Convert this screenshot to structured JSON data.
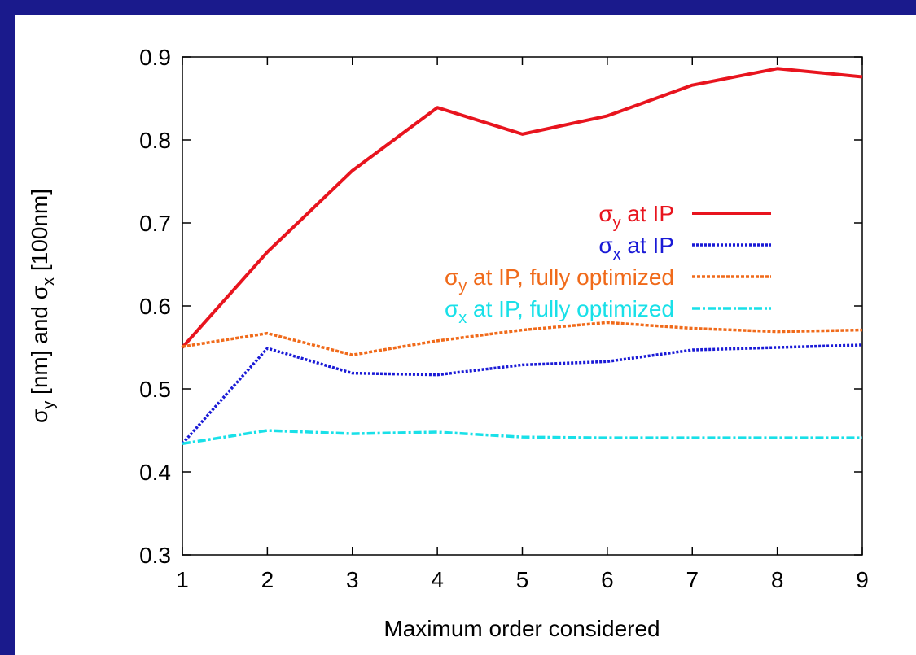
{
  "colors": {
    "frame": "#1a1a8c",
    "sigma_y": "#e8141e",
    "sigma_x": "#1a1ad6",
    "sigma_y_opt": "#f06a1a",
    "sigma_x_opt": "#19e0e8"
  },
  "chart_data": {
    "type": "line",
    "title": "",
    "xlabel": "Maximum order considered",
    "ylabel_parts": [
      "σ",
      "y",
      " [nm] and  σ",
      "x",
      " [100nm]"
    ],
    "xlim": [
      1,
      9
    ],
    "ylim": [
      0.3,
      0.9
    ],
    "x_ticks": [
      "1",
      "2",
      "3",
      "4",
      "5",
      "6",
      "7",
      "8",
      "9"
    ],
    "y_ticks": [
      "0.3",
      "0.4",
      "0.5",
      "0.6",
      "0.7",
      "0.8",
      "0.9"
    ],
    "grid": false,
    "legend_position": "right-middle",
    "x": [
      1,
      2,
      3,
      4,
      5,
      6,
      7,
      8,
      9
    ],
    "series": [
      {
        "name_parts": [
          "σ",
          "y",
          " at IP"
        ],
        "style": "solid",
        "color_key": "sigma_y",
        "values": [
          0.55,
          0.665,
          0.763,
          0.839,
          0.807,
          0.829,
          0.866,
          0.886,
          0.876
        ]
      },
      {
        "name_parts": [
          "σ",
          "x",
          "  at IP"
        ],
        "style": "dotted",
        "color_key": "sigma_x",
        "values": [
          0.434,
          0.549,
          0.519,
          0.517,
          0.529,
          0.533,
          0.547,
          0.55,
          0.553
        ]
      },
      {
        "name_parts": [
          "σ",
          "y",
          " at IP, fully optimized"
        ],
        "style": "dashdot-fine",
        "color_key": "sigma_y_opt",
        "values": [
          0.551,
          0.567,
          0.541,
          0.558,
          0.571,
          0.58,
          0.573,
          0.569,
          0.571
        ]
      },
      {
        "name_parts": [
          "σ",
          "x",
          "  at IP, fully optimized"
        ],
        "style": "dashdot",
        "color_key": "sigma_x_opt",
        "values": [
          0.434,
          0.45,
          0.446,
          0.448,
          0.442,
          0.441,
          0.441,
          0.441,
          0.441
        ]
      }
    ]
  }
}
